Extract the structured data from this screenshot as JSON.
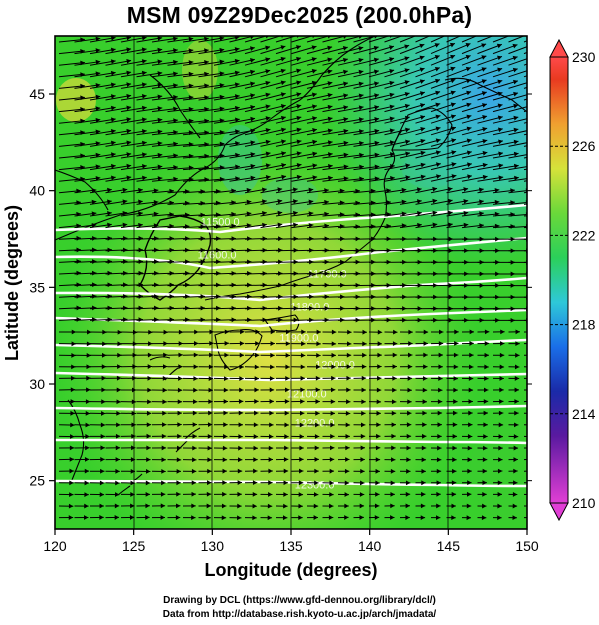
{
  "title": "MSM 09Z29Dec2025 (200.0hPa)",
  "credits": {
    "line1": "Drawing by DCL (https://www.gfd-dennou.org/library/dcl/)",
    "line2": "Data from http://database.rish.kyoto-u.ac.jp/arch/jmadata/"
  },
  "colors": {
    "warm_yellow": "#d8e24a",
    "green": "#36d02a",
    "cyan": "#38c8c0",
    "blue": "#3aa6e8",
    "coastline": "#000000",
    "contour": "#ffffff",
    "arrow": "#000000"
  },
  "map": {
    "lon_range": [
      120,
      150
    ],
    "lat_range": [
      22.5,
      48
    ],
    "x_ticks": [
      "120",
      "125",
      "130",
      "135",
      "140",
      "145",
      "150"
    ],
    "y_ticks": [
      "25",
      "30",
      "35",
      "40",
      "45"
    ],
    "xlabel": "Longitude (degrees)",
    "ylabel": "Latitude  (degrees)",
    "field": "temperature",
    "vectors": "wind arrows, mostly westerly",
    "contour_labels": [
      {
        "text": "11500.0",
        "lon": 130.5,
        "lat": 38.2
      },
      {
        "text": "11600.0",
        "lon": 130.3,
        "lat": 36.5
      },
      {
        "text": "11700.0",
        "lon": 137.3,
        "lat": 35.5
      },
      {
        "text": "11800.0",
        "lon": 136.2,
        "lat": 33.8
      },
      {
        "text": "11900.0",
        "lon": 135.5,
        "lat": 32.2
      },
      {
        "text": "12000.0",
        "lon": 137.8,
        "lat": 30.8
      },
      {
        "text": "12100.0",
        "lon": 136.0,
        "lat": 29.3
      },
      {
        "text": "12200.0",
        "lon": 136.5,
        "lat": 27.8
      },
      {
        "text": "12300.0",
        "lon": 136.5,
        "lat": 24.6
      }
    ]
  },
  "colorbar": {
    "min": 210,
    "max": 230,
    "labels": [
      "230",
      "226",
      "222",
      "218",
      "214",
      "210"
    ],
    "stops": [
      {
        "value": 210,
        "color": "#e13fd5"
      },
      {
        "value": 213,
        "color": "#5a1aa0"
      },
      {
        "value": 215,
        "color": "#1a2aa8"
      },
      {
        "value": 217,
        "color": "#1a6ee8"
      },
      {
        "value": 219,
        "color": "#2ec8d8"
      },
      {
        "value": 221,
        "color": "#2bd05a"
      },
      {
        "value": 223,
        "color": "#6ad83a"
      },
      {
        "value": 225,
        "color": "#d6e23a"
      },
      {
        "value": 227,
        "color": "#f0a030"
      },
      {
        "value": 229,
        "color": "#e83a20"
      },
      {
        "value": 230,
        "color": "#ff4a4a"
      }
    ]
  }
}
